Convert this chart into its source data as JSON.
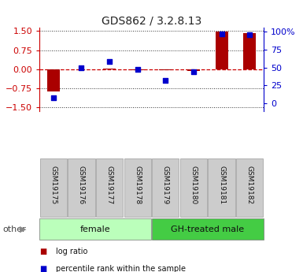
{
  "title": "GDS862 / 3.2.8.13",
  "samples": [
    "GSM19175",
    "GSM19176",
    "GSM19177",
    "GSM19178",
    "GSM19179",
    "GSM19180",
    "GSM19181",
    "GSM19182"
  ],
  "log_ratio": [
    -0.88,
    0.0,
    0.03,
    -0.03,
    -0.04,
    -0.07,
    1.47,
    1.42
  ],
  "percentile_rank": [
    8,
    50,
    58,
    47,
    32,
    44,
    97,
    96
  ],
  "groups": [
    {
      "label": "female",
      "start": 0,
      "end": 4,
      "color": "#bbffbb"
    },
    {
      "label": "GH-treated male",
      "start": 4,
      "end": 8,
      "color": "#44cc44"
    }
  ],
  "other_label": "other",
  "bar_color": "#aa0000",
  "dot_color": "#0000cc",
  "left_axis_color": "#cc0000",
  "right_axis_color": "#0000cc",
  "ylim_left": [
    -1.65,
    1.65
  ],
  "yticks_left": [
    -1.5,
    -0.75,
    0,
    0.75,
    1.5
  ],
  "yticks_right": [
    0,
    25,
    50,
    75,
    100
  ],
  "ylim_right": [
    -11,
    106
  ],
  "bar_width": 0.45,
  "bg_color": "#ffffff",
  "plot_bg": "#ffffff",
  "grid_color": "#333333",
  "zero_line_color": "#cc0000",
  "legend_red_label": "log ratio",
  "legend_blue_label": "percentile rank within the sample",
  "label_box_color": "#cccccc",
  "label_box_edge": "#999999",
  "sample_label_fontsize": 6.5,
  "group_label_fontsize": 8.0,
  "title_fontsize": 10
}
